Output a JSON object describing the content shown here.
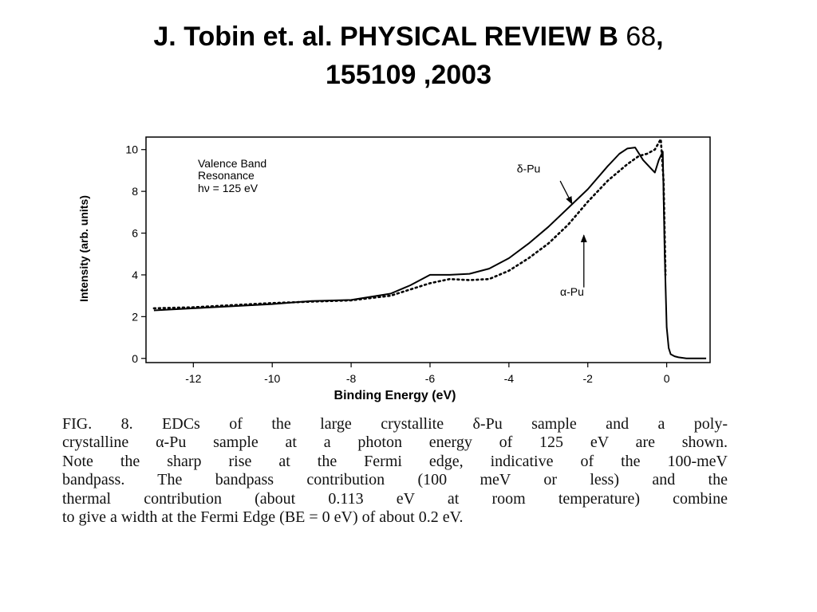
{
  "slide_title": {
    "line1_part1": "J. Tobin et. al. PHYSICAL REVIEW B ",
    "line1_volume": "68",
    "line1_part2": ",",
    "line2": "155109 ,2003"
  },
  "chart_data": {
    "type": "line",
    "title": "",
    "xlabel": "Binding Energy (eV)",
    "ylabel": "Intensity (arb. units)",
    "xlim": [
      -13.2,
      1.1
    ],
    "ylim": [
      -0.2,
      10.6
    ],
    "x_ticks": [
      -12,
      -10,
      -8,
      -6,
      -4,
      -2,
      0
    ],
    "x_tick_labels": [
      "-12",
      "-10",
      "-8",
      "-6",
      "-4",
      "-2",
      "0"
    ],
    "y_ticks": [
      0,
      2,
      4,
      6,
      8,
      10
    ],
    "y_tick_labels": [
      "0",
      "2",
      "4",
      "6",
      "8",
      "10"
    ],
    "grid": false,
    "legend": "none",
    "annotation_lines": [
      "Valence Band",
      "Resonance",
      "hν = 125 eV"
    ],
    "series": [
      {
        "name": "δ-Pu",
        "style": "solid",
        "color": "#000000",
        "x": [
          -13.0,
          -12.0,
          -11.0,
          -10.0,
          -9.0,
          -8.0,
          -7.0,
          -6.5,
          -6.0,
          -5.5,
          -5.0,
          -4.5,
          -4.0,
          -3.5,
          -3.0,
          -2.5,
          -2.0,
          -1.5,
          -1.2,
          -1.0,
          -0.8,
          -0.6,
          -0.4,
          -0.3,
          -0.2,
          -0.1,
          -0.05,
          0.0,
          0.05,
          0.1,
          0.2,
          0.3,
          0.5,
          1.0
        ],
        "y": [
          2.3,
          2.4,
          2.5,
          2.6,
          2.75,
          2.8,
          3.1,
          3.5,
          4.0,
          4.0,
          4.05,
          4.3,
          4.8,
          5.5,
          6.3,
          7.2,
          8.1,
          9.2,
          9.8,
          10.05,
          10.1,
          9.5,
          9.1,
          8.9,
          9.5,
          9.9,
          5.0,
          1.5,
          0.5,
          0.2,
          0.1,
          0.05,
          0.0,
          0.0
        ]
      },
      {
        "name": "α-Pu",
        "style": "dotted",
        "color": "#000000",
        "x": [
          -13.0,
          -12.0,
          -11.0,
          -10.0,
          -9.0,
          -8.0,
          -7.0,
          -6.0,
          -5.5,
          -5.0,
          -4.5,
          -4.0,
          -3.5,
          -3.0,
          -2.5,
          -2.0,
          -1.5,
          -1.0,
          -0.7,
          -0.5,
          -0.3,
          -0.15,
          -0.08,
          -0.03
        ],
        "y": [
          2.4,
          2.45,
          2.55,
          2.65,
          2.72,
          2.78,
          3.0,
          3.6,
          3.8,
          3.75,
          3.8,
          4.2,
          4.8,
          5.5,
          6.4,
          7.5,
          8.5,
          9.3,
          9.7,
          9.8,
          10.0,
          10.5,
          8.5,
          4.0
        ]
      }
    ],
    "labels": [
      {
        "text": "δ-Pu",
        "arrow_from": [
          -2.7,
          8.5
        ],
        "arrow_to": [
          -2.4,
          7.4
        ]
      },
      {
        "text": "α-Pu",
        "arrow_from": [
          -2.1,
          3.4
        ],
        "arrow_to": [
          -2.1,
          5.9
        ]
      }
    ]
  },
  "caption": {
    "lines": [
      "FIG. 8.  EDCs of the large crystallite δ-Pu sample and a poly-",
      "crystalline α-Pu sample at a photon energy of 125 eV are shown.",
      "Note the sharp rise at the Fermi edge, indicative of the 100-meV",
      "bandpass. The bandpass contribution (100 meV or less) and the",
      "thermal contribution (about 0.113 eV at room temperature) combine",
      "to give a width at the Fermi Edge (BE = 0 eV)  of about 0.2 eV."
    ]
  }
}
